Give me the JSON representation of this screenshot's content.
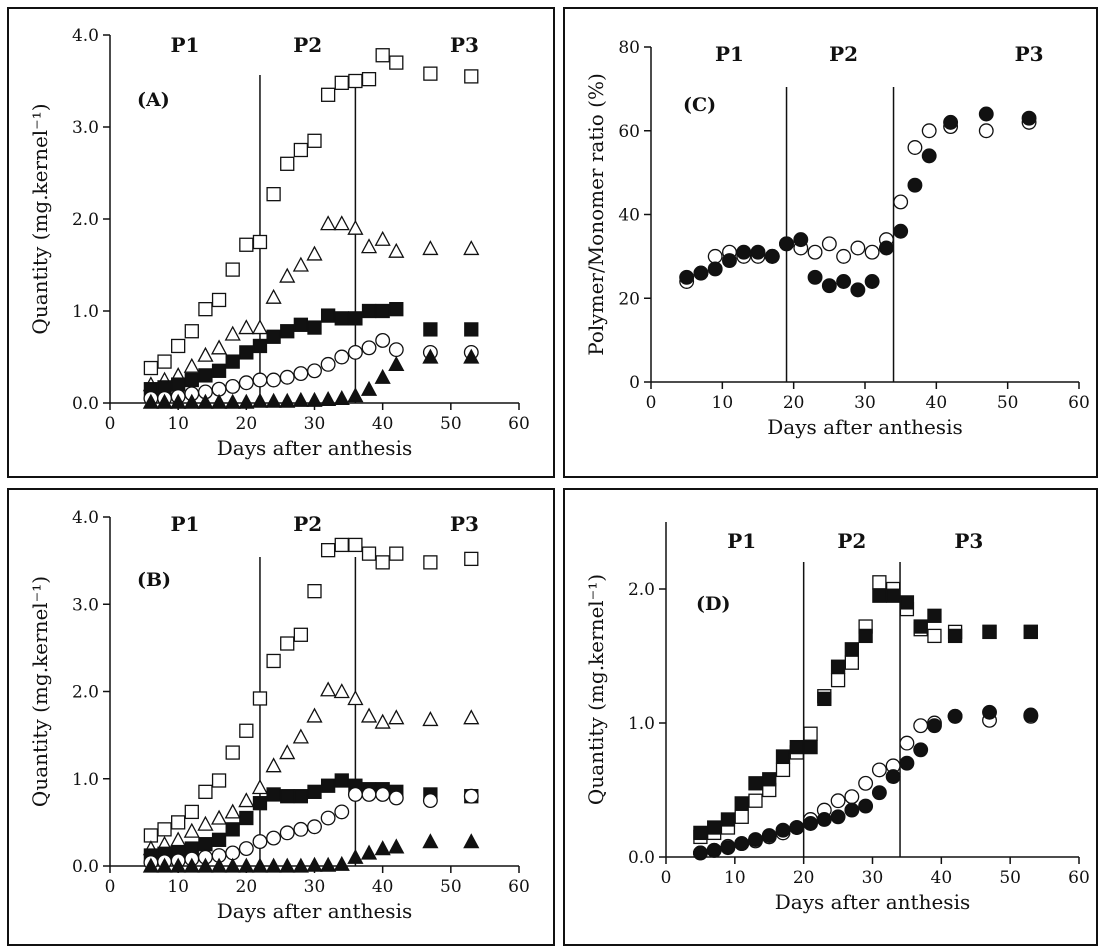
{
  "chart_data": [
    {
      "id": "A",
      "type": "scatter",
      "panel_label": "(A)",
      "xlabel": "Days after anthesis",
      "ylabel": "Quantity (mg.kernel⁻¹)",
      "xlim": [
        0,
        60
      ],
      "ylim": [
        0,
        4
      ],
      "xticks": [
        0,
        10,
        20,
        30,
        40,
        50,
        60
      ],
      "xtick_labels": [
        "0",
        "10",
        "20",
        "30",
        "40",
        "50",
        "60"
      ],
      "yticks": [
        0,
        1,
        2,
        3,
        4
      ],
      "ytick_labels": [
        "0.0",
        "1.0",
        "2.0",
        "3.0",
        "4.0"
      ],
      "phase_lines": [
        22,
        36
      ],
      "phases": [
        {
          "label": "P1",
          "x": 11
        },
        {
          "label": "P2",
          "x": 29
        },
        {
          "label": "P3",
          "x": 52
        }
      ],
      "grid": false,
      "series": [
        {
          "marker": "square-open",
          "x": [
            6,
            8,
            10,
            12,
            14,
            16,
            18,
            20,
            22,
            24,
            26,
            28,
            30,
            32,
            34,
            36,
            38,
            40,
            42,
            47,
            53
          ],
          "y": [
            0.38,
            0.45,
            0.62,
            0.78,
            1.02,
            1.12,
            1.45,
            1.72,
            1.75,
            2.27,
            2.6,
            2.75,
            2.85,
            3.35,
            3.48,
            3.5,
            3.52,
            3.78,
            3.7,
            3.58,
            3.55
          ]
        },
        {
          "marker": "triangle-open",
          "x": [
            6,
            8,
            10,
            12,
            14,
            16,
            18,
            20,
            22,
            24,
            26,
            28,
            30,
            32,
            34,
            36,
            38,
            40,
            42,
            47,
            53
          ],
          "y": [
            0.2,
            0.25,
            0.3,
            0.4,
            0.52,
            0.6,
            0.75,
            0.82,
            0.82,
            1.15,
            1.38,
            1.5,
            1.62,
            1.95,
            1.95,
            1.9,
            1.7,
            1.78,
            1.65,
            1.68,
            1.68
          ]
        },
        {
          "marker": "square-filled",
          "x": [
            6,
            8,
            10,
            12,
            14,
            16,
            18,
            20,
            22,
            24,
            26,
            28,
            30,
            32,
            34,
            36,
            38,
            40,
            42,
            47,
            53
          ],
          "y": [
            0.15,
            0.17,
            0.2,
            0.25,
            0.3,
            0.35,
            0.45,
            0.55,
            0.62,
            0.72,
            0.78,
            0.85,
            0.82,
            0.95,
            0.92,
            0.92,
            1.0,
            1.0,
            1.02,
            0.8,
            0.8
          ]
        },
        {
          "marker": "circle-open",
          "x": [
            6,
            8,
            10,
            12,
            14,
            16,
            18,
            20,
            22,
            24,
            26,
            28,
            30,
            32,
            34,
            36,
            38,
            40,
            42,
            47,
            53
          ],
          "y": [
            0.05,
            0.05,
            0.07,
            0.1,
            0.12,
            0.15,
            0.18,
            0.22,
            0.25,
            0.25,
            0.28,
            0.32,
            0.35,
            0.42,
            0.5,
            0.55,
            0.6,
            0.68,
            0.58,
            0.55,
            0.55
          ]
        },
        {
          "marker": "triangle-filled",
          "x": [
            6,
            8,
            10,
            12,
            14,
            16,
            18,
            20,
            22,
            24,
            26,
            28,
            30,
            32,
            34,
            36,
            38,
            40,
            42,
            47,
            53
          ],
          "y": [
            0.01,
            0.01,
            0.01,
            0.01,
            0.01,
            0.01,
            0.01,
            0.01,
            0.02,
            0.02,
            0.02,
            0.03,
            0.03,
            0.04,
            0.05,
            0.08,
            0.15,
            0.28,
            0.42,
            0.5,
            0.5
          ]
        }
      ]
    },
    {
      "id": "B",
      "type": "scatter",
      "panel_label": "(B)",
      "xlabel": "Days after anthesis",
      "ylabel": "Quantity (mg.kernel⁻¹)",
      "xlim": [
        0,
        60
      ],
      "ylim": [
        0,
        4
      ],
      "xticks": [
        0,
        10,
        20,
        30,
        40,
        50,
        60
      ],
      "xtick_labels": [
        "0",
        "10",
        "20",
        "30",
        "40",
        "50",
        "60"
      ],
      "yticks": [
        0,
        1,
        2,
        3,
        4
      ],
      "ytick_labels": [
        "0.0",
        "1.0",
        "2.0",
        "3.0",
        "4.0"
      ],
      "phase_lines": [
        22,
        36
      ],
      "phases": [
        {
          "label": "P1",
          "x": 11
        },
        {
          "label": "P2",
          "x": 29
        },
        {
          "label": "P3",
          "x": 52
        }
      ],
      "grid": false,
      "series": [
        {
          "marker": "square-open",
          "x": [
            6,
            8,
            10,
            12,
            14,
            16,
            18,
            20,
            22,
            24,
            26,
            28,
            30,
            32,
            34,
            36,
            38,
            40,
            42,
            47,
            53
          ],
          "y": [
            0.35,
            0.42,
            0.5,
            0.62,
            0.85,
            0.98,
            1.3,
            1.55,
            1.92,
            2.35,
            2.55,
            2.65,
            3.15,
            3.62,
            3.68,
            3.68,
            3.58,
            3.48,
            3.58,
            3.48,
            3.52
          ]
        },
        {
          "marker": "triangle-open",
          "x": [
            6,
            8,
            10,
            12,
            14,
            16,
            18,
            20,
            22,
            24,
            26,
            28,
            30,
            32,
            34,
            36,
            38,
            40,
            42,
            47,
            53
          ],
          "y": [
            0.2,
            0.25,
            0.3,
            0.4,
            0.48,
            0.55,
            0.62,
            0.75,
            0.9,
            1.15,
            1.3,
            1.48,
            1.72,
            2.02,
            2.0,
            1.92,
            1.72,
            1.65,
            1.7,
            1.68,
            1.7
          ]
        },
        {
          "marker": "square-filled",
          "x": [
            6,
            8,
            10,
            12,
            14,
            16,
            18,
            20,
            22,
            24,
            26,
            28,
            30,
            32,
            34,
            36,
            38,
            40,
            42,
            47,
            53
          ],
          "y": [
            0.12,
            0.14,
            0.16,
            0.2,
            0.25,
            0.3,
            0.42,
            0.55,
            0.72,
            0.82,
            0.8,
            0.8,
            0.85,
            0.92,
            0.98,
            0.92,
            0.88,
            0.88,
            0.85,
            0.82,
            0.8
          ]
        },
        {
          "marker": "circle-open",
          "x": [
            6,
            8,
            10,
            12,
            14,
            16,
            18,
            20,
            22,
            24,
            26,
            28,
            30,
            32,
            34,
            36,
            38,
            40,
            42,
            47,
            53
          ],
          "y": [
            0.04,
            0.05,
            0.06,
            0.08,
            0.1,
            0.12,
            0.15,
            0.2,
            0.28,
            0.32,
            0.38,
            0.42,
            0.45,
            0.55,
            0.62,
            0.82,
            0.82,
            0.82,
            0.78,
            0.75,
            0.8
          ]
        },
        {
          "marker": "triangle-filled",
          "x": [
            6,
            8,
            10,
            12,
            14,
            16,
            18,
            20,
            22,
            24,
            26,
            28,
            30,
            32,
            34,
            36,
            38,
            40,
            42,
            47,
            53
          ],
          "y": [
            0,
            0,
            0,
            0,
            0,
            0,
            0,
            0,
            0,
            0,
            0,
            0,
            0.01,
            0.01,
            0.02,
            0.1,
            0.15,
            0.2,
            0.22,
            0.28,
            0.28
          ]
        }
      ]
    },
    {
      "id": "C",
      "type": "scatter",
      "panel_label": "(C)",
      "xlabel": "Days after anthesis",
      "ylabel": "Polymer/Monomer ratio (%)",
      "xlim": [
        0,
        60
      ],
      "ylim": [
        0,
        80
      ],
      "xticks": [
        0,
        10,
        20,
        30,
        40,
        50,
        60
      ],
      "xtick_labels": [
        "0",
        "10",
        "20",
        "30",
        "40",
        "50",
        "60"
      ],
      "yticks": [
        0,
        20,
        40,
        60,
        80
      ],
      "ytick_labels": [
        "0",
        "20",
        "40",
        "60",
        "80"
      ],
      "phase_lines": [
        19,
        34
      ],
      "phases": [
        {
          "label": "P1",
          "x": 11
        },
        {
          "label": "P2",
          "x": 27
        },
        {
          "label": "P3",
          "x": 53
        }
      ],
      "grid": false,
      "series": [
        {
          "marker": "circle-open",
          "x": [
            5,
            7,
            9,
            11,
            13,
            15,
            17,
            19,
            21,
            23,
            25,
            27,
            29,
            31,
            33,
            35,
            37,
            39,
            42,
            47,
            53
          ],
          "y": [
            24,
            26,
            30,
            31,
            30,
            30,
            30,
            33,
            32,
            31,
            33,
            30,
            32,
            31,
            34,
            43,
            56,
            60,
            61,
            60,
            62
          ]
        },
        {
          "marker": "circle-filled",
          "x": [
            5,
            7,
            9,
            11,
            13,
            15,
            17,
            19,
            21,
            23,
            25,
            27,
            29,
            31,
            33,
            35,
            37,
            39,
            42,
            47,
            53
          ],
          "y": [
            25,
            26,
            27,
            29,
            31,
            31,
            30,
            33,
            34,
            25,
            23,
            24,
            22,
            24,
            32,
            36,
            47,
            54,
            62,
            64,
            63
          ]
        }
      ]
    },
    {
      "id": "D",
      "type": "scatter",
      "panel_label": "(D)",
      "xlabel": "Days after anthesis",
      "ylabel": "Quantity (mg.kernel⁻¹)",
      "xlim": [
        0,
        60
      ],
      "ylim": [
        0,
        2.5
      ],
      "xticks": [
        0,
        10,
        20,
        30,
        40,
        50,
        60
      ],
      "xtick_labels": [
        "0",
        "10",
        "20",
        "30",
        "40",
        "50",
        "60"
      ],
      "yticks": [
        0,
        1,
        2
      ],
      "ytick_labels": [
        "0.0",
        "1.0",
        "2.0"
      ],
      "phase_lines": [
        20,
        34
      ],
      "phases": [
        {
          "label": "P1",
          "x": 11
        },
        {
          "label": "P2",
          "x": 27
        },
        {
          "label": "P3",
          "x": 44
        }
      ],
      "grid": false,
      "series": [
        {
          "marker": "square-open",
          "x": [
            5,
            7,
            9,
            11,
            13,
            15,
            17,
            19,
            21,
            23,
            25,
            27,
            29,
            31,
            33,
            35,
            37,
            39,
            42,
            47,
            53
          ],
          "y": [
            0.15,
            0.18,
            0.22,
            0.3,
            0.42,
            0.5,
            0.65,
            0.78,
            0.92,
            1.2,
            1.32,
            1.45,
            1.72,
            2.05,
            2.0,
            1.85,
            1.7,
            1.65,
            1.68,
            1.68,
            1.68
          ]
        },
        {
          "marker": "square-filled",
          "x": [
            5,
            7,
            9,
            11,
            13,
            15,
            17,
            19,
            21,
            23,
            25,
            27,
            29,
            31,
            33,
            35,
            37,
            39,
            42,
            47,
            53
          ],
          "y": [
            0.18,
            0.22,
            0.28,
            0.4,
            0.55,
            0.58,
            0.75,
            0.82,
            0.82,
            1.18,
            1.42,
            1.55,
            1.65,
            1.95,
            1.95,
            1.9,
            1.72,
            1.8,
            1.65,
            1.68,
            1.68
          ]
        },
        {
          "marker": "circle-open",
          "x": [
            5,
            7,
            9,
            11,
            13,
            15,
            17,
            19,
            21,
            23,
            25,
            27,
            29,
            31,
            33,
            35,
            37,
            39,
            42,
            47,
            53
          ],
          "y": [
            0.03,
            0.05,
            0.08,
            0.1,
            0.12,
            0.15,
            0.18,
            0.22,
            0.28,
            0.35,
            0.42,
            0.45,
            0.55,
            0.65,
            0.68,
            0.85,
            0.98,
            1.0,
            1.05,
            1.02,
            1.05
          ]
        },
        {
          "marker": "circle-filled",
          "x": [
            5,
            7,
            9,
            11,
            13,
            15,
            17,
            19,
            21,
            23,
            25,
            27,
            29,
            31,
            33,
            35,
            37,
            39,
            42,
            47,
            53
          ],
          "y": [
            0.03,
            0.05,
            0.07,
            0.1,
            0.13,
            0.16,
            0.2,
            0.22,
            0.25,
            0.28,
            0.3,
            0.35,
            0.38,
            0.48,
            0.6,
            0.7,
            0.8,
            0.98,
            1.05,
            1.08,
            1.06
          ]
        }
      ]
    }
  ]
}
